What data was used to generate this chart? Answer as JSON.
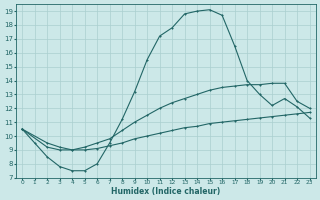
{
  "xlabel": "Humidex (Indice chaleur)",
  "ylabel": "",
  "bg_color": "#cce8e8",
  "grid_color": "#aacfcf",
  "line_color": "#226666",
  "xlim": [
    -0.5,
    23.5
  ],
  "ylim": [
    7,
    19.5
  ],
  "yticks": [
    7,
    8,
    9,
    10,
    11,
    12,
    13,
    14,
    15,
    16,
    17,
    18,
    19
  ],
  "xticks": [
    0,
    1,
    2,
    3,
    4,
    5,
    6,
    7,
    8,
    9,
    10,
    11,
    12,
    13,
    14,
    15,
    16,
    17,
    18,
    19,
    20,
    21,
    22,
    23
  ],
  "line1_x": [
    0,
    1,
    2,
    3,
    4,
    5,
    6,
    7,
    8,
    9,
    10,
    11,
    12,
    13,
    14,
    15,
    16,
    17,
    18,
    19,
    20,
    21,
    22,
    23
  ],
  "line1_y": [
    10.5,
    9.5,
    8.5,
    7.8,
    7.5,
    7.5,
    8.0,
    9.5,
    11.2,
    13.2,
    15.5,
    17.2,
    17.8,
    18.8,
    19.0,
    19.1,
    18.7,
    16.5,
    14.0,
    13.0,
    12.2,
    12.7,
    12.1,
    11.3
  ],
  "line2_x": [
    0,
    2,
    3,
    4,
    5,
    6,
    7,
    8,
    9,
    10,
    11,
    12,
    13,
    14,
    15,
    16,
    17,
    18,
    19,
    20,
    21,
    22,
    23
  ],
  "line2_y": [
    10.5,
    9.2,
    9.0,
    9.0,
    9.2,
    9.5,
    9.8,
    10.4,
    11.0,
    11.5,
    12.0,
    12.4,
    12.7,
    13.0,
    13.3,
    13.5,
    13.6,
    13.7,
    13.7,
    13.8,
    13.8,
    12.5,
    12.0
  ],
  "line3_x": [
    0,
    2,
    3,
    4,
    5,
    6,
    7,
    8,
    9,
    10,
    11,
    12,
    13,
    14,
    15,
    16,
    17,
    18,
    19,
    20,
    21,
    22,
    23
  ],
  "line3_y": [
    10.5,
    9.5,
    9.2,
    9.0,
    9.0,
    9.1,
    9.3,
    9.5,
    9.8,
    10.0,
    10.2,
    10.4,
    10.6,
    10.7,
    10.9,
    11.0,
    11.1,
    11.2,
    11.3,
    11.4,
    11.5,
    11.6,
    11.7
  ]
}
